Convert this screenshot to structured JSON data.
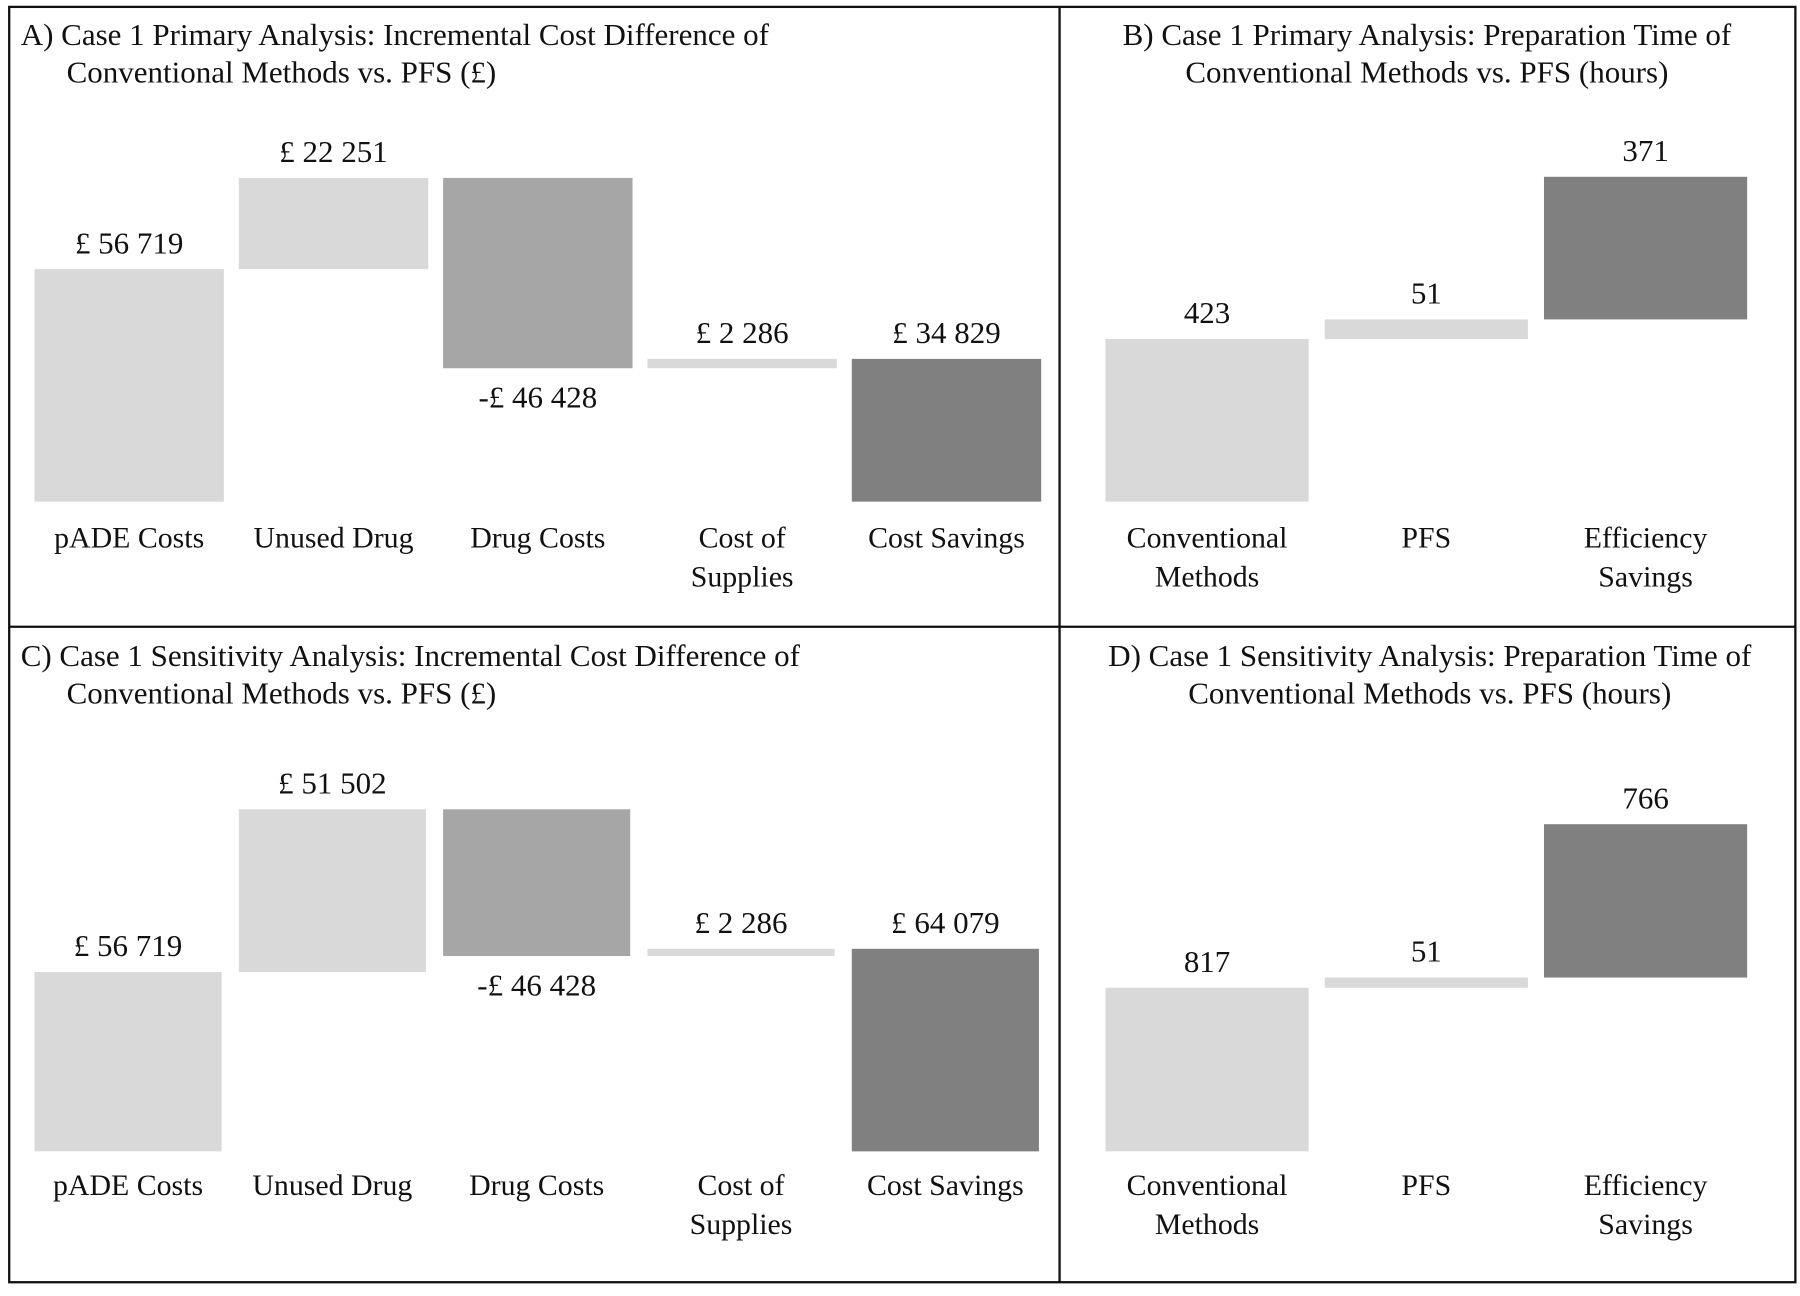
{
  "chart_data": [
    {
      "type": "waterfall",
      "title": "A) Case 1 Primary Analysis: Incremental Cost Difference of Conventional Methods vs. PFS (£)",
      "categories": [
        "pADE Costs",
        "Unused Drug",
        "Drug Costs",
        "Cost of Supplies",
        "Cost Savings"
      ],
      "values": [
        56719,
        22251,
        -46428,
        2286,
        34829
      ],
      "value_labels": [
        "£ 56 719",
        "£ 22 251",
        "-£ 46 428",
        "£ 2 286",
        "£ 34 829"
      ],
      "colors": [
        "#d9d9d9",
        "#d9d9d9",
        "#a6a6a6",
        "#d9d9d9",
        "#808080"
      ],
      "last_bar_total": true
    },
    {
      "type": "waterfall",
      "title": "B) Case 1 Primary Analysis: Preparation Time of Conventional Methods vs. PFS (hours)",
      "categories": [
        "Conventional Methods",
        "PFS",
        "Efficiency Savings"
      ],
      "values": [
        423,
        51,
        371
      ],
      "colors": [
        "#d9d9d9",
        "#d9d9d9",
        "#808080"
      ],
      "last_bar_total": false
    },
    {
      "type": "waterfall",
      "title": "C) Case 1 Sensitivity Analysis: Incremental Cost Difference of Conventional Methods vs. PFS (£)",
      "categories": [
        "pADE Costs",
        "Unused Drug",
        "Drug Costs",
        "Cost of Supplies",
        "Cost Savings"
      ],
      "values": [
        56719,
        51502,
        -46428,
        2286,
        64079
      ],
      "value_labels": [
        "£ 56 719",
        "£ 51 502",
        "-£ 46 428",
        "£ 2 286",
        "£ 64 079"
      ],
      "colors": [
        "#d9d9d9",
        "#d9d9d9",
        "#a6a6a6",
        "#d9d9d9",
        "#808080"
      ],
      "last_bar_total": true
    },
    {
      "type": "waterfall",
      "title": "D) Case 1 Sensitivity Analysis: Preparation Time of Conventional Methods vs. PFS (hours)",
      "categories": [
        "Conventional Methods",
        "PFS",
        "Efficiency Savings"
      ],
      "values": [
        817,
        51,
        766
      ],
      "colors": [
        "#d9d9d9",
        "#d9d9d9",
        "#808080"
      ],
      "last_bar_total": false
    }
  ]
}
